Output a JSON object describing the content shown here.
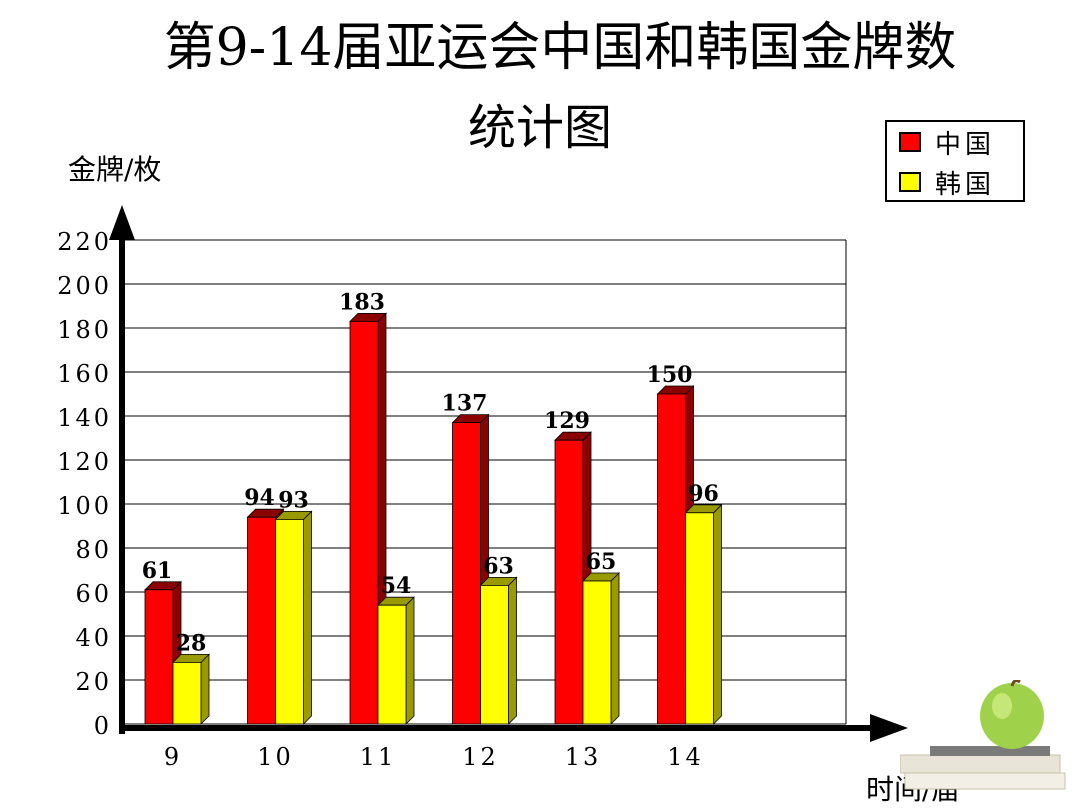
{
  "title_line1": "第9-14届亚运会中国和韩国金牌数",
  "title_line2": "统计图",
  "colors": {
    "china": "#ff0000",
    "china_side": "#8b0000",
    "korea": "#ffff00",
    "korea_side": "#999900"
  },
  "chart_data": {
    "type": "bar",
    "ylabel": "金牌/枚",
    "xlabel": "时间/届",
    "categories": [
      "9",
      "10",
      "11",
      "12",
      "13",
      "14"
    ],
    "series": [
      {
        "name": "中国",
        "values": [
          61,
          94,
          183,
          137,
          129,
          150
        ]
      },
      {
        "name": "韩国",
        "values": [
          28,
          93,
          54,
          63,
          65,
          96
        ]
      }
    ],
    "ylim": [
      0,
      220
    ],
    "yticks": [
      "0",
      "20",
      "40",
      "60",
      "80",
      "100",
      "120",
      "140",
      "160",
      "180",
      "200",
      "220"
    ],
    "grid": true,
    "legend_position": "top-right"
  }
}
